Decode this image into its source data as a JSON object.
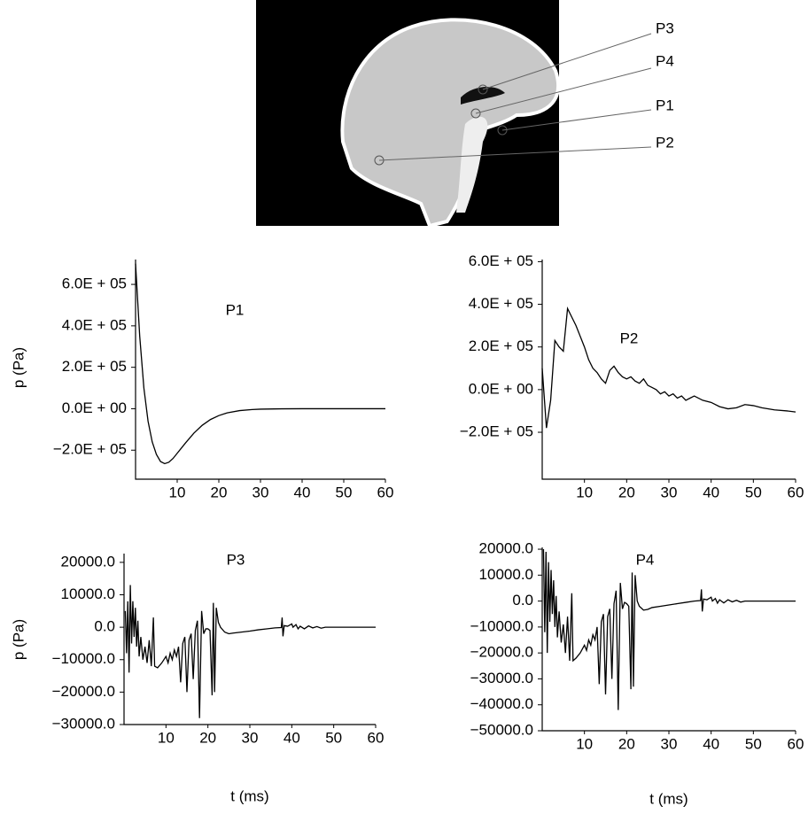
{
  "figure": {
    "labels": [
      "P3",
      "P4",
      "P1",
      "P2"
    ]
  },
  "chart_data": [
    {
      "type": "line",
      "title": "P1",
      "ylabel": "p (Pa)",
      "color": "#000000",
      "xlim": [
        0,
        60
      ],
      "xticks": [
        10,
        20,
        30,
        40,
        50,
        60
      ],
      "ylim": [
        -340000,
        720000
      ],
      "yticks": [
        {
          "value": -200000,
          "label": "−2.0E + 05"
        },
        {
          "value": 0,
          "label": "0.0E + 00"
        },
        {
          "value": 200000,
          "label": "2.0E + 05"
        },
        {
          "value": 400000,
          "label": "4.0E + 05"
        },
        {
          "value": 600000,
          "label": "6.0E + 05"
        }
      ],
      "x": [
        0,
        1,
        2,
        3,
        4,
        5,
        6,
        7,
        8,
        9,
        10,
        12,
        14,
        16,
        18,
        20,
        22,
        25,
        28,
        30,
        35,
        40,
        50,
        60
      ],
      "values": [
        700000,
        350000,
        100000,
        -60000,
        -160000,
        -220000,
        -255000,
        -265000,
        -258000,
        -240000,
        -215000,
        -165000,
        -118000,
        -80000,
        -52000,
        -33000,
        -20000,
        -9000,
        -4000,
        -2000,
        -500,
        0,
        0,
        0
      ]
    },
    {
      "type": "line",
      "title": "P2",
      "color": "#000000",
      "xlim": [
        0,
        60
      ],
      "xticks": [
        10,
        20,
        30,
        40,
        50,
        60
      ],
      "ylim": [
        -420000,
        610000
      ],
      "yticks": [
        {
          "value": -200000,
          "label": "−2.0E + 05"
        },
        {
          "value": 0,
          "label": "0.0E + 00"
        },
        {
          "value": 200000,
          "label": "2.0E + 05"
        },
        {
          "value": 400000,
          "label": "4.0E + 05"
        },
        {
          "value": 600000,
          "label": "6.0E + 05"
        }
      ],
      "x": [
        0,
        1,
        2,
        3,
        4,
        5,
        6,
        7,
        8,
        9,
        10,
        11,
        12,
        13,
        14,
        15,
        16,
        17,
        18,
        19,
        20,
        21,
        22,
        23,
        24,
        25,
        26,
        27,
        28,
        29,
        30,
        31,
        32,
        33,
        34,
        35,
        36,
        38,
        40,
        42,
        44,
        46,
        48,
        50,
        52,
        55,
        58,
        60
      ],
      "values": [
        100000,
        -180000,
        -50000,
        230000,
        200000,
        180000,
        380000,
        340000,
        300000,
        250000,
        200000,
        140000,
        100000,
        80000,
        50000,
        30000,
        90000,
        110000,
        80000,
        60000,
        50000,
        60000,
        40000,
        30000,
        50000,
        20000,
        10000,
        0,
        -20000,
        -10000,
        -30000,
        -20000,
        -40000,
        -30000,
        -50000,
        -40000,
        -30000,
        -50000,
        -60000,
        -80000,
        -90000,
        -85000,
        -70000,
        -75000,
        -85000,
        -95000,
        -100000,
        -105000
      ]
    },
    {
      "type": "line",
      "title": "P3",
      "ylabel": "p (Pa)",
      "xlabel": "t (ms)",
      "color": "#000000",
      "xlim": [
        0,
        60
      ],
      "xticks": [
        10,
        20,
        30,
        40,
        50,
        60
      ],
      "ylim": [
        -30000,
        22700
      ],
      "yticks": [
        {
          "value": -30000,
          "label": "−30000.0"
        },
        {
          "value": -20000,
          "label": "−20000.0"
        },
        {
          "value": -10000,
          "label": "−10000.0"
        },
        {
          "value": 0,
          "label": "0.0"
        },
        {
          "value": 10000,
          "label": "10000.0"
        },
        {
          "value": 20000,
          "label": "20000.0"
        }
      ],
      "x": [
        0.3,
        0.6,
        0.9,
        1.2,
        1.5,
        1.8,
        2.1,
        2.4,
        2.7,
        3,
        3.3,
        3.6,
        4,
        4.5,
        5,
        5.5,
        6,
        6.5,
        7,
        7.3,
        8,
        9,
        10,
        10.5,
        11,
        11.5,
        12,
        12.5,
        13,
        13.5,
        14,
        14.5,
        15,
        15.5,
        16,
        16.5,
        17,
        17.5,
        18,
        18.5,
        19,
        19.5,
        20,
        20.5,
        21,
        21.3,
        21.6,
        22,
        22.5,
        23,
        24,
        25,
        26,
        28,
        30,
        32,
        34,
        36,
        37.5,
        37.7,
        37.9,
        38.2,
        39,
        40,
        40.3,
        41,
        41.5,
        42,
        43,
        44,
        45,
        46,
        47,
        48,
        50,
        55,
        60
      ],
      "values": [
        5000,
        -8000,
        8000,
        -14000,
        13000,
        -5000,
        8000,
        -3000,
        6000,
        -6000,
        2000,
        -9000,
        -3000,
        -10000,
        -6000,
        -11000,
        -4000,
        -12000,
        3000,
        -12000,
        -12500,
        -11000,
        -9000,
        -11000,
        -8000,
        -10000,
        -7000,
        -9000,
        -6000,
        -17000,
        -5000,
        -3000,
        -20000,
        -4000,
        -2000,
        -16000,
        -1000,
        2000,
        -28000,
        5000,
        -2000,
        -500,
        -500,
        -1000,
        -21000,
        7500,
        -20000,
        6000,
        1500,
        0,
        -1500,
        -2000,
        -1800,
        -1500,
        -1200,
        -800,
        -500,
        -200,
        -100,
        3000,
        -2800,
        500,
        300,
        1000,
        0,
        800,
        -500,
        300,
        -500,
        400,
        -200,
        200,
        -300,
        0,
        0,
        0,
        0
      ]
    },
    {
      "type": "line",
      "title": "P4",
      "xlabel": "t (ms)",
      "color": "#000000",
      "xlim": [
        0,
        60
      ],
      "xticks": [
        10,
        20,
        30,
        40,
        50,
        60
      ],
      "ylim": [
        -50000,
        20700
      ],
      "yticks": [
        {
          "value": -50000,
          "label": "−50000.0"
        },
        {
          "value": -40000,
          "label": "−40000.0"
        },
        {
          "value": -30000,
          "label": "−30000.0"
        },
        {
          "value": -20000,
          "label": "−20000.0"
        },
        {
          "value": -10000,
          "label": "−10000.0"
        },
        {
          "value": 0,
          "label": "0.0"
        },
        {
          "value": 10000,
          "label": "10000.0"
        },
        {
          "value": 20000,
          "label": "20000.0"
        }
      ],
      "x": [
        0.3,
        0.6,
        0.9,
        1.2,
        1.5,
        1.8,
        2.1,
        2.4,
        2.7,
        3,
        3.3,
        3.6,
        4,
        4.5,
        5,
        5.5,
        6,
        6.5,
        7,
        7.3,
        8,
        9,
        10,
        10.5,
        11,
        11.5,
        12,
        12.5,
        13,
        13.5,
        14,
        14.5,
        15,
        15.5,
        16,
        16.5,
        17,
        17.5,
        18,
        18.5,
        19,
        19.5,
        20,
        20.5,
        21,
        21.3,
        21.6,
        22,
        22.5,
        23,
        24,
        25,
        26,
        28,
        30,
        32,
        34,
        36,
        37.5,
        37.7,
        37.9,
        38.2,
        39,
        40,
        40.3,
        41,
        41.5,
        42,
        43,
        44,
        45,
        46,
        47,
        48,
        50,
        55,
        60
      ],
      "values": [
        20000,
        -12000,
        19000,
        -20000,
        15000,
        -8000,
        12000,
        -5000,
        8000,
        -10000,
        2000,
        -14000,
        -4000,
        -16000,
        -9000,
        -20000,
        -6000,
        -23000,
        3000,
        -23000,
        -22000,
        -20000,
        -17000,
        -19000,
        -15000,
        -17000,
        -13000,
        -15000,
        -10000,
        -32000,
        -8000,
        -5000,
        -36000,
        -6000,
        -3000,
        -30000,
        -1000,
        4000,
        -42000,
        7000,
        -3000,
        -500,
        -1000,
        -2000,
        -34000,
        11000,
        -33000,
        10000,
        0,
        -2000,
        -3500,
        -3200,
        -2500,
        -2000,
        -1500,
        -1000,
        -500,
        0,
        200,
        4500,
        -4000,
        800,
        500,
        1500,
        0,
        1000,
        -800,
        500,
        -700,
        500,
        -300,
        300,
        -400,
        0,
        0,
        0,
        0
      ]
    }
  ]
}
